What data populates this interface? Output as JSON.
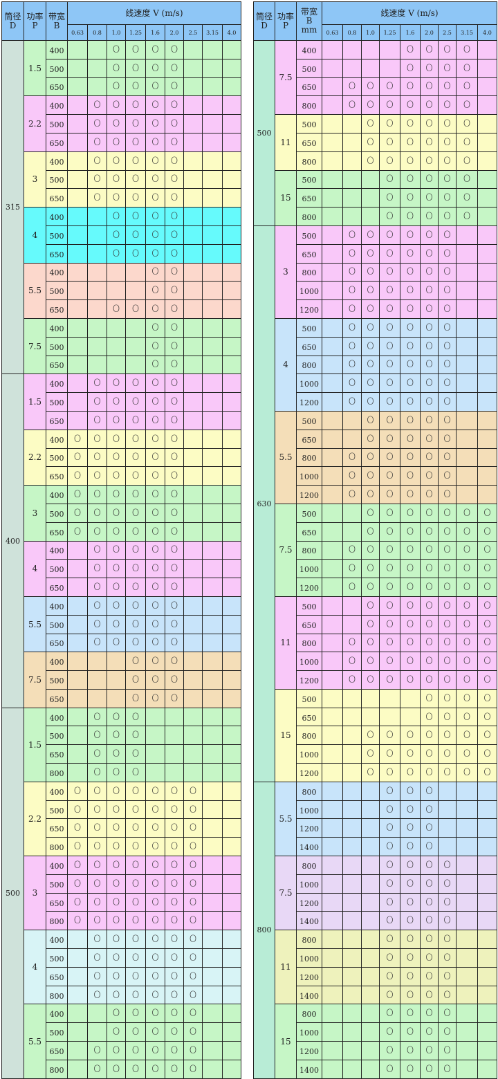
{
  "header": {
    "diameter_label": "筒径",
    "diameter_symbol": "D",
    "power_label": "功率",
    "power_symbol": "P",
    "width_label": "带宽",
    "width_symbol": "B",
    "width_unit": "mm",
    "speed_label": "线速度 V (m/s)",
    "speeds": [
      "0.63",
      "0.8",
      "1.0",
      "1.25",
      "1.6",
      "2.0",
      "2.5",
      "3.15",
      "4.0"
    ]
  },
  "mark_symbol": "O",
  "colors": {
    "header": "#8ec6f6",
    "green": "#c6f6c6",
    "pink": "#f9c8f9",
    "yellow": "#fcfcc4",
    "cyan": "#66fafc",
    "salmon": "#fcd8cc",
    "lightblue": "#c8e4fa",
    "tan": "#f4deb8",
    "lightcyan": "#d8f4f6",
    "lavender": "#e8d8f6",
    "yellowgreen": "#eef2bc",
    "diameter_left": "#cfe2da",
    "diameter_right": "#b8ecd6"
  },
  "tables": [
    {
      "show_unit": false,
      "groups": [
        {
          "d": "315",
          "powers": [
            {
              "p": "1.5",
              "color": "green",
              "rows": [
                {
                  "b": "400",
                  "marks": "--OOOO---"
                },
                {
                  "b": "500",
                  "marks": "--OOOO---"
                },
                {
                  "b": "650",
                  "marks": "--OOOO---"
                }
              ]
            },
            {
              "p": "2.2",
              "color": "pink",
              "rows": [
                {
                  "b": "400",
                  "marks": "-OOOOO---"
                },
                {
                  "b": "500",
                  "marks": "-OOOOO---"
                },
                {
                  "b": "650",
                  "marks": "-OOOOO---"
                }
              ]
            },
            {
              "p": "3",
              "color": "yellow",
              "rows": [
                {
                  "b": "400",
                  "marks": "-OOOOO---"
                },
                {
                  "b": "500",
                  "marks": "-OOOOO---"
                },
                {
                  "b": "650",
                  "marks": "-OOOOO---"
                }
              ]
            },
            {
              "p": "4",
              "color": "cyan",
              "rows": [
                {
                  "b": "400",
                  "marks": "--OOOO---"
                },
                {
                  "b": "500",
                  "marks": "--OOOO---"
                },
                {
                  "b": "650",
                  "marks": "--OOOO---"
                }
              ]
            },
            {
              "p": "5.5",
              "color": "salmon",
              "rows": [
                {
                  "b": "400",
                  "marks": "----OO---"
                },
                {
                  "b": "500",
                  "marks": "----OO---"
                },
                {
                  "b": "650",
                  "marks": "--OOOO---"
                }
              ]
            },
            {
              "p": "7.5",
              "color": "green",
              "rows": [
                {
                  "b": "400",
                  "marks": "----OO---"
                },
                {
                  "b": "500",
                  "marks": "----OO---"
                },
                {
                  "b": "650",
                  "marks": "----OO---"
                }
              ]
            }
          ]
        },
        {
          "d": "400",
          "powers": [
            {
              "p": "1.5",
              "color": "pink",
              "rows": [
                {
                  "b": "400",
                  "marks": "-OOOOO---"
                },
                {
                  "b": "500",
                  "marks": "-OOOOO---"
                },
                {
                  "b": "650",
                  "marks": "-OOOOO---"
                }
              ]
            },
            {
              "p": "2.2",
              "color": "yellow",
              "rows": [
                {
                  "b": "400",
                  "marks": "OOOOOO---"
                },
                {
                  "b": "500",
                  "marks": "OOOOOO---"
                },
                {
                  "b": "650",
                  "marks": "OOOOOO---"
                }
              ]
            },
            {
              "p": "3",
              "color": "green",
              "rows": [
                {
                  "b": "400",
                  "marks": "OOOOOO---"
                },
                {
                  "b": "500",
                  "marks": "OOOOOO---"
                },
                {
                  "b": "650",
                  "marks": "OOOOOO---"
                }
              ]
            },
            {
              "p": "4",
              "color": "pink",
              "rows": [
                {
                  "b": "400",
                  "marks": "-OOOOO---"
                },
                {
                  "b": "500",
                  "marks": "-OOOOO---"
                },
                {
                  "b": "650",
                  "marks": "-OOOOO---"
                }
              ]
            },
            {
              "p": "5.5",
              "color": "lightblue",
              "rows": [
                {
                  "b": "400",
                  "marks": "-OOOOO---"
                },
                {
                  "b": "500",
                  "marks": "-OOOOO---"
                },
                {
                  "b": "650",
                  "marks": "-OOOOO---"
                }
              ]
            },
            {
              "p": "7.5",
              "color": "tan",
              "rows": [
                {
                  "b": "400",
                  "marks": "---OOO---"
                },
                {
                  "b": "500",
                  "marks": "---OOO---"
                },
                {
                  "b": "650",
                  "marks": "---OOO---"
                }
              ]
            }
          ]
        },
        {
          "d": "500",
          "powers": [
            {
              "p": "1.5",
              "color": "green",
              "rows": [
                {
                  "b": "400",
                  "marks": "-OOO-----"
                },
                {
                  "b": "500",
                  "marks": "-OOO-----"
                },
                {
                  "b": "650",
                  "marks": "-OOO-----"
                },
                {
                  "b": "800",
                  "marks": "-OOO-----"
                }
              ]
            },
            {
              "p": "2.2",
              "color": "yellow",
              "rows": [
                {
                  "b": "400",
                  "marks": "OOOOOOO--"
                },
                {
                  "b": "500",
                  "marks": "OOOOOOO--"
                },
                {
                  "b": "650",
                  "marks": "OOOOOOO--"
                },
                {
                  "b": "800",
                  "marks": "OOOOOOO--"
                }
              ]
            },
            {
              "p": "3",
              "color": "pink",
              "rows": [
                {
                  "b": "400",
                  "marks": "OOOOOOO--"
                },
                {
                  "b": "500",
                  "marks": "OOOOOOO--"
                },
                {
                  "b": "650",
                  "marks": "OOOOOOO--"
                },
                {
                  "b": "800",
                  "marks": "OOOOOOO--"
                }
              ]
            },
            {
              "p": "4",
              "color": "lightcyan",
              "rows": [
                {
                  "b": "400",
                  "marks": "-OOOOOO--"
                },
                {
                  "b": "500",
                  "marks": "-OOOOOO--"
                },
                {
                  "b": "650",
                  "marks": "-OOOOOO--"
                },
                {
                  "b": "800",
                  "marks": "-OOOOOO--"
                }
              ]
            },
            {
              "p": "5.5",
              "color": "green",
              "rows": [
                {
                  "b": "400",
                  "marks": "--OOOOO--"
                },
                {
                  "b": "500",
                  "marks": "--OOOOO--"
                },
                {
                  "b": "650",
                  "marks": "-OOOOOO--"
                },
                {
                  "b": "800",
                  "marks": "-OOOOOO--"
                }
              ]
            }
          ]
        }
      ]
    },
    {
      "show_unit": true,
      "groups": [
        {
          "d": "500",
          "powers": [
            {
              "p": "7.5",
              "color": "pink",
              "rows": [
                {
                  "b": "400",
                  "marks": "----OOOO-"
                },
                {
                  "b": "500",
                  "marks": "----OOOO-"
                },
                {
                  "b": "650",
                  "marks": "-OOOOOOO-"
                },
                {
                  "b": "800",
                  "marks": "-OOOOOOO-"
                }
              ]
            },
            {
              "p": "11",
              "color": "yellow",
              "rows": [
                {
                  "b": "500",
                  "marks": "--OOOOOO-"
                },
                {
                  "b": "650",
                  "marks": "--OOOOOO-"
                },
                {
                  "b": "800",
                  "marks": "--OOOOOO-"
                }
              ]
            },
            {
              "p": "15",
              "color": "green",
              "rows": [
                {
                  "b": "500",
                  "marks": "---OOOOO-"
                },
                {
                  "b": "650",
                  "marks": "---OOOOO-"
                },
                {
                  "b": "800",
                  "marks": "---OOOOO-"
                }
              ]
            }
          ]
        },
        {
          "d": "630",
          "powers": [
            {
              "p": "3",
              "color": "pink",
              "rows": [
                {
                  "b": "500",
                  "marks": "-OOOOOO--"
                },
                {
                  "b": "650",
                  "marks": "-OOOOOO--"
                },
                {
                  "b": "800",
                  "marks": "-OOOOOO--"
                },
                {
                  "b": "1000",
                  "marks": "-OOOOOO--"
                },
                {
                  "b": "1200",
                  "marks": "-OOOOOO--"
                }
              ]
            },
            {
              "p": "4",
              "color": "lightblue",
              "rows": [
                {
                  "b": "500",
                  "marks": "-OOOOOO--"
                },
                {
                  "b": "650",
                  "marks": "-OOOOOO--"
                },
                {
                  "b": "800",
                  "marks": "-OOOOOO--"
                },
                {
                  "b": "1000",
                  "marks": "-OOOOOO--"
                },
                {
                  "b": "1200",
                  "marks": "-OOOOOO--"
                }
              ]
            },
            {
              "p": "5.5",
              "color": "tan",
              "rows": [
                {
                  "b": "500",
                  "marks": "--OOOOO--"
                },
                {
                  "b": "650",
                  "marks": "--OOOOO--"
                },
                {
                  "b": "800",
                  "marks": "-OOOOOO--"
                },
                {
                  "b": "1000",
                  "marks": "-OOOOOO--"
                },
                {
                  "b": "1200",
                  "marks": "-OOOOOO--"
                }
              ]
            },
            {
              "p": "7.5",
              "color": "green",
              "rows": [
                {
                  "b": "500",
                  "marks": "--OOOOOOO"
                },
                {
                  "b": "650",
                  "marks": "--OOOOOOO"
                },
                {
                  "b": "800",
                  "marks": "-OOOOOOOO"
                },
                {
                  "b": "1000",
                  "marks": "-OOOOOOOO"
                },
                {
                  "b": "1200",
                  "marks": "-OOOOOOOO"
                }
              ]
            },
            {
              "p": "11",
              "color": "pink",
              "rows": [
                {
                  "b": "500",
                  "marks": "--OOOOOOO"
                },
                {
                  "b": "650",
                  "marks": "--OOOOOOO"
                },
                {
                  "b": "800",
                  "marks": "-OOOOOOOO"
                },
                {
                  "b": "1000",
                  "marks": "-OOOOOOOO"
                },
                {
                  "b": "1200",
                  "marks": "-OOOOOOOO"
                }
              ]
            },
            {
              "p": "15",
              "color": "yellow",
              "rows": [
                {
                  "b": "500",
                  "marks": "-----OOOO"
                },
                {
                  "b": "650",
                  "marks": "-----OOOO"
                },
                {
                  "b": "800",
                  "marks": "--OOOOOOO"
                },
                {
                  "b": "1000",
                  "marks": "--OOOOOOO"
                },
                {
                  "b": "1200",
                  "marks": "--OOOOOOO"
                }
              ]
            }
          ]
        },
        {
          "d": "800",
          "powers": [
            {
              "p": "5.5",
              "color": "lightblue",
              "rows": [
                {
                  "b": "800",
                  "marks": "---OOO---"
                },
                {
                  "b": "1000",
                  "marks": "---OOO---"
                },
                {
                  "b": "1200",
                  "marks": "---OOO---"
                },
                {
                  "b": "1400",
                  "marks": "---OOO---"
                }
              ]
            },
            {
              "p": "7.5",
              "color": "lavender",
              "rows": [
                {
                  "b": "800",
                  "marks": "---OOOO--"
                },
                {
                  "b": "1000",
                  "marks": "---OOOO--"
                },
                {
                  "b": "1200",
                  "marks": "---OOOO--"
                },
                {
                  "b": "1400",
                  "marks": "---OOOO--"
                }
              ]
            },
            {
              "p": "11",
              "color": "yellowgreen",
              "rows": [
                {
                  "b": "800",
                  "marks": "---OOOO--"
                },
                {
                  "b": "1000",
                  "marks": "---OOOO--"
                },
                {
                  "b": "1200",
                  "marks": "---OOOO--"
                },
                {
                  "b": "1400",
                  "marks": "---OOOO--"
                }
              ]
            },
            {
              "p": "15",
              "color": "green",
              "rows": [
                {
                  "b": "800",
                  "marks": "---OOOO--"
                },
                {
                  "b": "1000",
                  "marks": "---OOOO--"
                },
                {
                  "b": "1200",
                  "marks": "---OOOO--"
                },
                {
                  "b": "1400",
                  "marks": "---OOOO--"
                }
              ]
            }
          ]
        }
      ]
    }
  ]
}
